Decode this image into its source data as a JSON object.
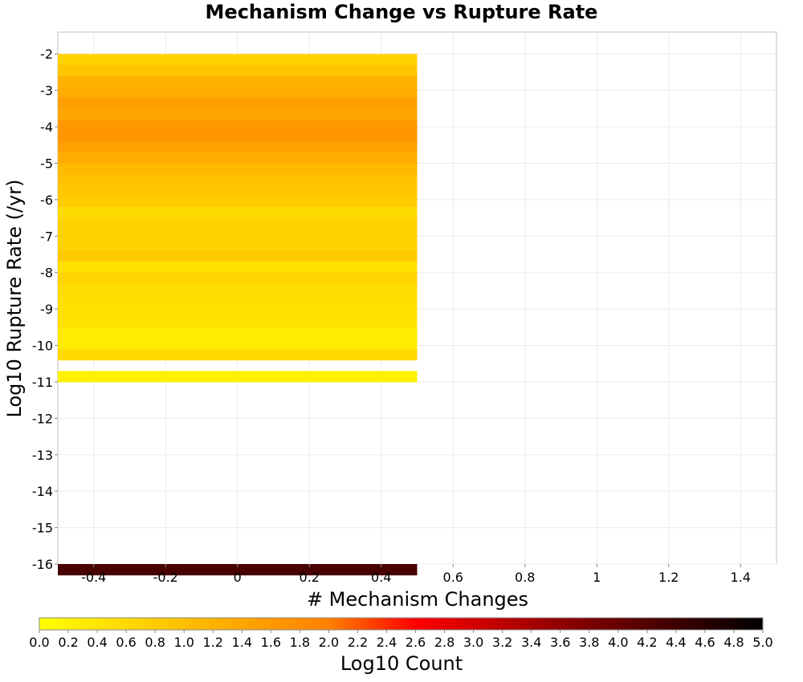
{
  "chart_data": {
    "type": "heatmap",
    "title": "Mechanism Change vs Rupture Rate",
    "xlabel": "# Mechanism Changes",
    "ylabel": "Log10 Rupture Rate (/yr)",
    "xlim": [
      -0.5,
      1.5
    ],
    "ylim": [
      -16,
      -1.4
    ],
    "x_ticks": [
      "-0.4",
      "-0.2",
      "0",
      "0.2",
      "0.4",
      "0.6",
      "0.8",
      "1",
      "1.2",
      "1.4"
    ],
    "y_ticks": [
      "-2",
      "-3",
      "-4",
      "-5",
      "-6",
      "-7",
      "-8",
      "-9",
      "-10",
      "-11",
      "-12",
      "-13",
      "-14",
      "-15",
      "-16"
    ],
    "grid": true,
    "bin_x_range": [
      -0.5,
      0.5
    ],
    "bin_height": 0.3,
    "cells": [
      {
        "y": -2.15,
        "log10_count": 0.7
      },
      {
        "y": -2.45,
        "log10_count": 0.9
      },
      {
        "y": -2.75,
        "log10_count": 1.2
      },
      {
        "y": -3.05,
        "log10_count": 1.3
      },
      {
        "y": -3.35,
        "log10_count": 1.5
      },
      {
        "y": -3.65,
        "log10_count": 1.4
      },
      {
        "y": -3.95,
        "log10_count": 1.6
      },
      {
        "y": -4.25,
        "log10_count": 1.65
      },
      {
        "y": -4.55,
        "log10_count": 1.5
      },
      {
        "y": -4.85,
        "log10_count": 1.3
      },
      {
        "y": -5.15,
        "log10_count": 1.1
      },
      {
        "y": -5.45,
        "log10_count": 1.0
      },
      {
        "y": -5.75,
        "log10_count": 0.9
      },
      {
        "y": -6.05,
        "log10_count": 0.8
      },
      {
        "y": -6.35,
        "log10_count": 0.55
      },
      {
        "y": -6.65,
        "log10_count": 0.7
      },
      {
        "y": -6.95,
        "log10_count": 0.7
      },
      {
        "y": -7.25,
        "log10_count": 0.7
      },
      {
        "y": -7.55,
        "log10_count": 0.85
      },
      {
        "y": -7.85,
        "log10_count": 0.45
      },
      {
        "y": -8.15,
        "log10_count": 0.7
      },
      {
        "y": -8.45,
        "log10_count": 0.55
      },
      {
        "y": -8.75,
        "log10_count": 0.5
      },
      {
        "y": -9.05,
        "log10_count": 0.45
      },
      {
        "y": -9.35,
        "log10_count": 0.45
      },
      {
        "y": -9.65,
        "log10_count": 0.3
      },
      {
        "y": -9.95,
        "log10_count": 0.3
      },
      {
        "y": -10.25,
        "log10_count": 0.6
      },
      {
        "y": -10.85,
        "log10_count": 0.2
      },
      {
        "y": -16.15,
        "log10_count": 4.3
      }
    ],
    "colorbar": {
      "label": "Log10 Count",
      "range": [
        0.0,
        5.0
      ],
      "ticks": [
        "0.0",
        "0.2",
        "0.4",
        "0.6",
        "0.8",
        "1.0",
        "1.2",
        "1.4",
        "1.6",
        "1.8",
        "2.0",
        "2.2",
        "2.4",
        "2.6",
        "2.8",
        "3.0",
        "3.2",
        "3.4",
        "3.6",
        "3.8",
        "4.0",
        "4.2",
        "4.4",
        "4.6",
        "4.8",
        "5.0"
      ],
      "colors": [
        "#ffff00",
        "#ff8000",
        "#ff0000",
        "#800000",
        "#000000"
      ]
    }
  }
}
